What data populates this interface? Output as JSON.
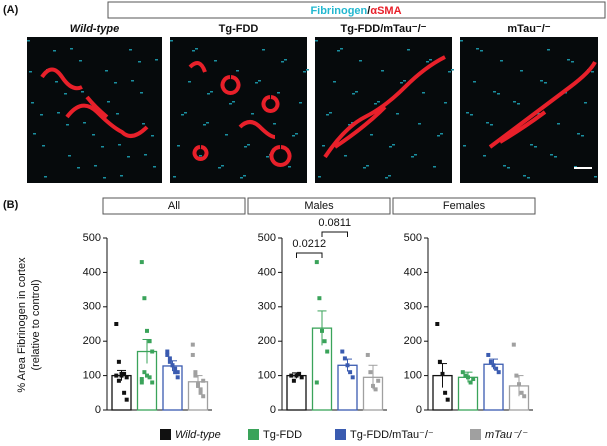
{
  "panel_a": {
    "label": "(A)",
    "stain": {
      "fibrinogen": "Fibrinogen",
      "separator": "/",
      "asma": "αSMA"
    },
    "images": [
      "Wild-type",
      "Tg-FDD",
      "Tg-FDD/mTau⁻/⁻",
      "mTau⁻/⁻"
    ]
  },
  "panel_b": {
    "label": "(B)",
    "y_label_lines": [
      "% Area Fibrinogen in cortex",
      "(relative to control)"
    ]
  },
  "legend": [
    {
      "name": "Wild-type",
      "color": "#111111"
    },
    {
      "name": "Tg-FDD",
      "color": "#3aa35a"
    },
    {
      "name": "Tg-FDD/mTau⁻/⁻",
      "color": "#3a5bb0"
    },
    {
      "name": "mTau⁻/⁻",
      "color": "#a0a0a0"
    }
  ],
  "chart_data": [
    {
      "type": "bar",
      "title": "All",
      "categories": [
        null,
        null,
        null,
        null
      ],
      "values": [
        100,
        170,
        128,
        82
      ],
      "errors": [
        15,
        35,
        15,
        18
      ],
      "points": [
        [
          100,
          85,
          100,
          105,
          95,
          250,
          140,
          105,
          50,
          30
        ],
        [
          430,
          325,
          230,
          200,
          170,
          80,
          110,
          100,
          95,
          80,
          90
        ],
        [
          170,
          150,
          130,
          110,
          95,
          160,
          140,
          130,
          120,
          110
        ],
        [
          160,
          110,
          70,
          60,
          85,
          190,
          100,
          75,
          50,
          40
        ]
      ],
      "ylim": [
        0,
        500
      ],
      "yticks": [
        0,
        100,
        200,
        300,
        400,
        500
      ],
      "annotations": []
    },
    {
      "type": "bar",
      "title": "Males",
      "categories": [
        null,
        null,
        null,
        null
      ],
      "values": [
        100,
        238,
        130,
        95
      ],
      "errors": [
        8,
        50,
        18,
        35
      ],
      "points": [
        [
          100,
          85,
          100,
          105,
          95
        ],
        [
          430,
          325,
          230,
          200,
          170,
          80
        ],
        [
          170,
          150,
          130,
          110,
          95
        ],
        [
          160,
          110,
          70,
          60,
          85
        ]
      ],
      "ylim": [
        0,
        500
      ],
      "yticks": [
        0,
        100,
        200,
        300,
        400,
        500
      ],
      "annotations": [
        "0.0212",
        "0.0811"
      ]
    },
    {
      "type": "bar",
      "title": "Females",
      "categories": [
        null,
        null,
        null,
        null
      ],
      "values": [
        100,
        95,
        133,
        70
      ],
      "errors": [
        35,
        15,
        15,
        30
      ],
      "points": [
        [
          250,
          140,
          105,
          50,
          30
        ],
        [
          110,
          100,
          95,
          80,
          90
        ],
        [
          160,
          140,
          130,
          120,
          110
        ],
        [
          190,
          100,
          75,
          50,
          40
        ]
      ],
      "ylim": [
        0,
        500
      ],
      "yticks": [
        0,
        100,
        200,
        300,
        400,
        500
      ],
      "annotations": []
    }
  ]
}
